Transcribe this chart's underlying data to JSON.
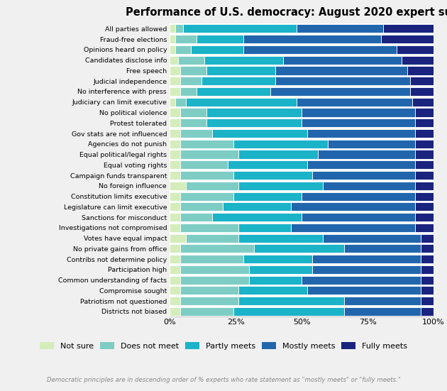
{
  "title": "Performance of U.S. democracy: August 2020 expert survey",
  "subtitle": "Democratic principles are in descending order of % experts who rate statement as \"mostly meets\" or \"fully meets.\"",
  "categories": [
    "All parties allowed",
    "Fraud-free elections",
    "Opinions heard on policy",
    "Candidates disclose info",
    "Free speech",
    "Judicial independence",
    "No interference with press",
    "Judiciary can limit executive",
    "No political violence",
    "Protest tolerated",
    "Gov stats are not influenced",
    "Agencies do not punish",
    "Equal political/legal rights",
    "Equal voting rights",
    "Campaign funds transparent",
    "No foreign influence",
    "Constitution limits executive",
    "Legislature can limit executive",
    "Sanctions for misconduct",
    "Investigations not compromised",
    "Votes have equal impact",
    "No private gains from office",
    "Contribs not determine policy",
    "Participation high",
    "Common understanding of facts",
    "Compromise sought",
    "Patriotism not questioned",
    "Districts not biased"
  ],
  "legend_labels": [
    "Not sure",
    "Does not meet",
    "Partly meets",
    "Mostly meets",
    "Fully meets"
  ],
  "colors": [
    "#d4edba",
    "#7ecdc5",
    "#1ab3c8",
    "#2166ac",
    "#1a237e"
  ],
  "chart_data": [
    [
      2,
      3,
      43,
      33,
      19
    ],
    [
      2,
      8,
      18,
      52,
      20
    ],
    [
      2,
      6,
      20,
      58,
      14
    ],
    [
      3,
      10,
      30,
      45,
      12
    ],
    [
      4,
      10,
      26,
      50,
      10
    ],
    [
      4,
      8,
      28,
      51,
      9
    ],
    [
      4,
      6,
      28,
      53,
      9
    ],
    [
      2,
      4,
      42,
      44,
      8
    ],
    [
      4,
      10,
      36,
      43,
      7
    ],
    [
      4,
      10,
      36,
      43,
      7
    ],
    [
      4,
      12,
      36,
      41,
      7
    ],
    [
      4,
      20,
      36,
      33,
      7
    ],
    [
      4,
      22,
      30,
      37,
      7
    ],
    [
      4,
      18,
      30,
      41,
      7
    ],
    [
      4,
      20,
      30,
      39,
      7
    ],
    [
      6,
      20,
      32,
      35,
      7
    ],
    [
      4,
      20,
      26,
      43,
      7
    ],
    [
      4,
      16,
      26,
      47,
      7
    ],
    [
      4,
      12,
      34,
      43,
      7
    ],
    [
      4,
      22,
      20,
      47,
      7
    ],
    [
      6,
      20,
      32,
      37,
      5
    ],
    [
      4,
      28,
      34,
      29,
      5
    ],
    [
      4,
      24,
      26,
      41,
      5
    ],
    [
      4,
      26,
      24,
      41,
      5
    ],
    [
      4,
      26,
      20,
      45,
      5
    ],
    [
      4,
      22,
      26,
      43,
      5
    ],
    [
      4,
      22,
      40,
      29,
      5
    ],
    [
      4,
      20,
      42,
      29,
      5
    ]
  ],
  "background_color": "#f0f0f0",
  "plot_background": "#ffffff",
  "figsize": [
    6.3,
    5.51
  ],
  "dpi": 100
}
